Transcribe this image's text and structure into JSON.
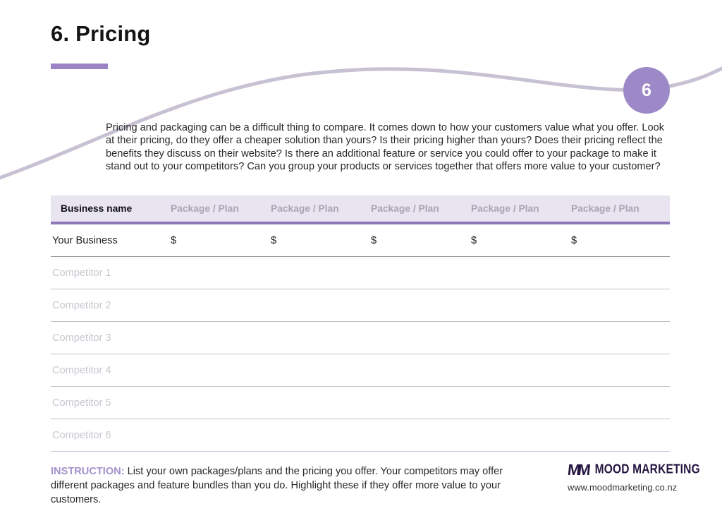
{
  "page": {
    "title": "6. Pricing",
    "badge_number": "6",
    "intro": "Pricing and packaging can be a difficult thing to compare. It comes down to how your customers value what you offer. Look at their pricing, do they offer a cheaper solution than yours? Is their pricing higher than yours? Does their pricing reflect the benefits they discuss on their website? Is there an additional feature or service you could offer to your package to make it stand out to your competitors? Can you group your products or services together that offers more value to your customer?",
    "accent_color": "#9b84c6",
    "curve_color": "#c7c1d3",
    "header_bg_color": "#e8e4f0"
  },
  "table": {
    "headers": [
      "Business name",
      "Package / Plan",
      "Package / Plan",
      "Package / Plan",
      "Package / Plan",
      "Package / Plan"
    ],
    "rows": [
      {
        "name": "Your Business",
        "type": "filled",
        "values": [
          "$",
          "$",
          "$",
          "$",
          "$"
        ]
      },
      {
        "name": "Competitor 1",
        "type": "placeholder",
        "values": [
          "",
          "",
          "",
          "",
          ""
        ]
      },
      {
        "name": "Competitor 2",
        "type": "placeholder",
        "values": [
          "",
          "",
          "",
          "",
          ""
        ]
      },
      {
        "name": "Competitor 3",
        "type": "placeholder",
        "values": [
          "",
          "",
          "",
          "",
          ""
        ]
      },
      {
        "name": "Competitor 4",
        "type": "placeholder",
        "values": [
          "",
          "",
          "",
          "",
          ""
        ]
      },
      {
        "name": "Competitor 5",
        "type": "placeholder",
        "values": [
          "",
          "",
          "",
          "",
          ""
        ]
      },
      {
        "name": "Competitor 6",
        "type": "placeholder",
        "values": [
          "",
          "",
          "",
          "",
          ""
        ]
      }
    ]
  },
  "instruction": {
    "label": "INSTRUCTION:",
    "text": "List your own packages/plans and the pricing you offer. Your competitors may offer different packages and feature bundles than you do. Highlight these if they offer more value to your customers."
  },
  "footer": {
    "logo_glyph": "MM",
    "brand": "MOOD MARKETING",
    "website": "www.moodmarketing.co.nz"
  }
}
